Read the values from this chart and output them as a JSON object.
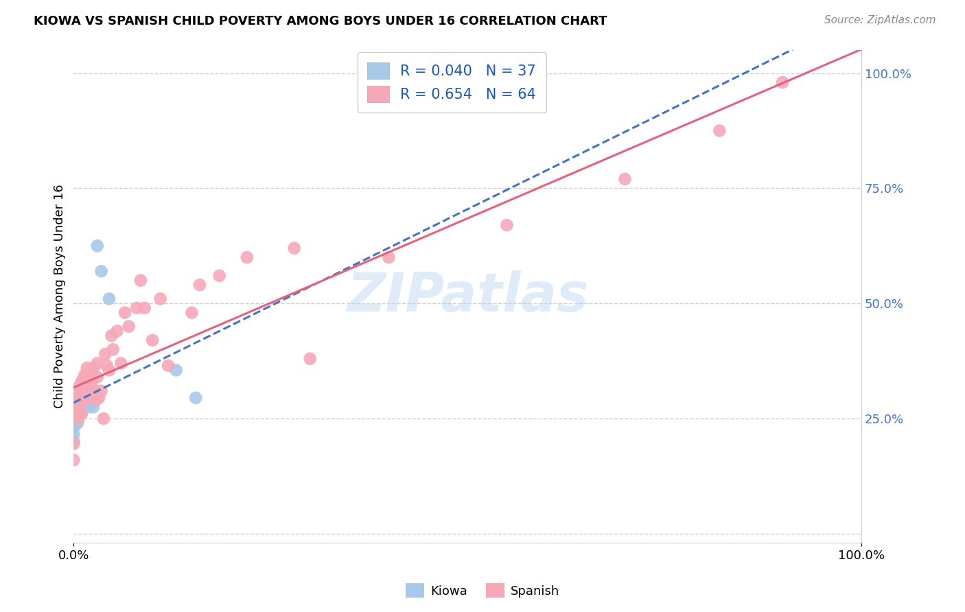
{
  "title": "KIOWA VS SPANISH CHILD POVERTY AMONG BOYS UNDER 16 CORRELATION CHART",
  "source": "Source: ZipAtlas.com",
  "ylabel": "Child Poverty Among Boys Under 16",
  "background_color": "#ffffff",
  "kiowa_color": "#a8c8e8",
  "spanish_color": "#f5a8b8",
  "kiowa_line_color": "#4472c4",
  "spanish_line_color": "#e8607a",
  "kiowa_R": 0.04,
  "kiowa_N": 37,
  "spanish_R": 0.654,
  "spanish_N": 64,
  "legend_text_color": "#1a56bb",
  "watermark": "ZIPatlas",
  "grid_color": "#d0d0d0",
  "kiowa_x": [
    0.0,
    0.0,
    0.0,
    0.0,
    0.0,
    0.0,
    0.0,
    0.0,
    0.003,
    0.003,
    0.003,
    0.005,
    0.005,
    0.005,
    0.005,
    0.007,
    0.007,
    0.008,
    0.008,
    0.01,
    0.01,
    0.01,
    0.012,
    0.013,
    0.015,
    0.015,
    0.018,
    0.02,
    0.02,
    0.022,
    0.025,
    0.028,
    0.03,
    0.035,
    0.045,
    0.13,
    0.155
  ],
  "kiowa_y": [
    0.285,
    0.275,
    0.265,
    0.255,
    0.24,
    0.23,
    0.215,
    0.2,
    0.285,
    0.27,
    0.25,
    0.29,
    0.275,
    0.255,
    0.24,
    0.295,
    0.28,
    0.3,
    0.26,
    0.285,
    0.295,
    0.305,
    0.29,
    0.295,
    0.29,
    0.28,
    0.295,
    0.275,
    0.3,
    0.295,
    0.275,
    0.29,
    0.625,
    0.57,
    0.51,
    0.355,
    0.295
  ],
  "spanish_x": [
    0.0,
    0.0,
    0.0,
    0.002,
    0.003,
    0.004,
    0.004,
    0.005,
    0.005,
    0.006,
    0.007,
    0.008,
    0.008,
    0.009,
    0.01,
    0.01,
    0.01,
    0.012,
    0.012,
    0.013,
    0.014,
    0.015,
    0.015,
    0.017,
    0.018,
    0.018,
    0.02,
    0.02,
    0.022,
    0.023,
    0.025,
    0.027,
    0.028,
    0.03,
    0.03,
    0.032,
    0.035,
    0.038,
    0.04,
    0.042,
    0.045,
    0.048,
    0.05,
    0.055,
    0.06,
    0.065,
    0.07,
    0.08,
    0.085,
    0.09,
    0.1,
    0.11,
    0.12,
    0.15,
    0.16,
    0.185,
    0.22,
    0.28,
    0.3,
    0.4,
    0.55,
    0.7,
    0.82,
    0.9
  ],
  "spanish_y": [
    0.26,
    0.195,
    0.16,
    0.29,
    0.28,
    0.275,
    0.26,
    0.305,
    0.26,
    0.25,
    0.32,
    0.29,
    0.26,
    0.28,
    0.33,
    0.3,
    0.26,
    0.335,
    0.295,
    0.31,
    0.345,
    0.335,
    0.295,
    0.36,
    0.33,
    0.3,
    0.35,
    0.31,
    0.355,
    0.33,
    0.36,
    0.31,
    0.29,
    0.37,
    0.34,
    0.295,
    0.31,
    0.25,
    0.39,
    0.365,
    0.355,
    0.43,
    0.4,
    0.44,
    0.37,
    0.48,
    0.45,
    0.49,
    0.55,
    0.49,
    0.42,
    0.51,
    0.365,
    0.48,
    0.54,
    0.56,
    0.6,
    0.62,
    0.38,
    0.6,
    0.67,
    0.77,
    0.875,
    0.98
  ],
  "xlim": [
    0.0,
    1.0
  ],
  "ylim": [
    -0.02,
    1.05
  ],
  "ytick_positions": [
    0.0,
    0.25,
    0.5,
    0.75,
    1.0
  ],
  "ytick_labels": [
    "",
    "25.0%",
    "50.0%",
    "75.0%",
    "100.0%"
  ],
  "xtick_positions": [
    0.0,
    1.0
  ],
  "xtick_labels": [
    "0.0%",
    "100.0%"
  ]
}
